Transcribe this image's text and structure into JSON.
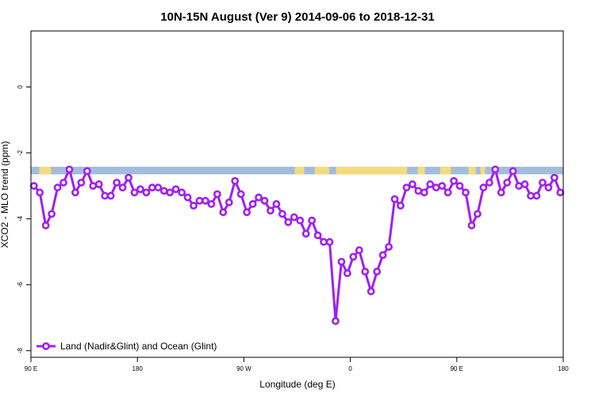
{
  "chart_data": {
    "type": "line",
    "title": "10N-15N August (Ver 9)   2014-09-06 to 2018-12-31",
    "xlabel": "Longitude (deg E)",
    "ylabel": "XCO2 - MLO trend (ppm)",
    "xlim": [
      90,
      540
    ],
    "ylim": [
      -8.2,
      1.7
    ],
    "x_ticks": [
      {
        "value": 90,
        "label": "90 E"
      },
      {
        "value": 180,
        "label": "180"
      },
      {
        "value": 270,
        "label": "90 W"
      },
      {
        "value": 360,
        "label": "0"
      },
      {
        "value": 450,
        "label": "90 E"
      },
      {
        "value": 540,
        "label": "180"
      }
    ],
    "y_ticks": [
      {
        "value": 0,
        "label": "0"
      },
      {
        "value": -2,
        "label": "-2"
      },
      {
        "value": -4,
        "label": "-4"
      },
      {
        "value": -6,
        "label": "-6"
      },
      {
        "value": -8,
        "label": "-8"
      }
    ],
    "grid": false,
    "legend_position": "bottom-left",
    "series": [
      {
        "name": "Land (Nadir&Glint) and Ocean (Glint)",
        "color": "#a020f0",
        "x": [
          92.5,
          97.5,
          102.5,
          107.5,
          112.5,
          117.5,
          122.5,
          127.5,
          132.5,
          137.5,
          142.5,
          147.5,
          152.5,
          157.5,
          162.5,
          167.5,
          172.5,
          177.5,
          182.5,
          187.5,
          192.5,
          197.5,
          202.5,
          207.5,
          212.5,
          217.5,
          222.5,
          227.5,
          232.5,
          237.5,
          242.5,
          247.5,
          252.5,
          257.5,
          262.5,
          267.5,
          272.5,
          277.5,
          282.5,
          287.5,
          292.5,
          297.5,
          302.5,
          307.5,
          312.5,
          317.5,
          322.5,
          327.5,
          332.5,
          337.5,
          342.5,
          347.5,
          352.5,
          357.5,
          362.5,
          367.5,
          372.5,
          377.5,
          382.5,
          387.5,
          392.5,
          397.5,
          402.5,
          407.5,
          412.5,
          417.5,
          422.5,
          427.5,
          432.5,
          437.5,
          442.5,
          447.5,
          452.5,
          457.5,
          462.5,
          467.5,
          472.5,
          477.5,
          482.5,
          487.5,
          492.5,
          497.5,
          502.5,
          507.5,
          512.5,
          517.5,
          522.5,
          527.5,
          532.5,
          537.5
        ],
        "values": [
          -3.0,
          -3.2,
          -4.2,
          -3.85,
          -3.05,
          -2.9,
          -2.5,
          -3.2,
          -2.9,
          -2.55,
          -3.0,
          -2.95,
          -3.3,
          -3.3,
          -2.9,
          -3.05,
          -2.75,
          -3.2,
          -3.1,
          -3.2,
          -3.05,
          -3.05,
          -3.15,
          -3.2,
          -3.1,
          -3.2,
          -3.35,
          -3.6,
          -3.45,
          -3.45,
          -3.55,
          -3.25,
          -3.8,
          -3.5,
          -2.85,
          -3.25,
          -3.8,
          -3.55,
          -3.35,
          -3.45,
          -3.75,
          -3.55,
          -3.85,
          -4.1,
          -3.95,
          -4.05,
          -4.45,
          -4.05,
          -4.5,
          -4.7,
          -4.7,
          -7.1,
          -5.3,
          -5.65,
          -5.15,
          -4.95,
          -5.6,
          -6.2,
          -5.6,
          -5.1,
          -4.85,
          -3.4,
          -3.6,
          -3.05,
          -2.95,
          -3.15,
          -3.2,
          -2.95,
          -3.05,
          -3.0,
          -3.2,
          -2.85,
          -3.0,
          -3.2,
          -4.2,
          -3.85,
          -3.05,
          -2.9,
          -2.5,
          -3.2,
          -2.9,
          -2.55,
          -3.0,
          -2.95,
          -3.3,
          -3.3,
          -2.9,
          -3.05,
          -2.75,
          -3.2
        ]
      }
    ],
    "land_ocean_strip": {
      "y_range": [
        -2.65,
        -2.42
      ],
      "ocean_color": "#a3bcde",
      "land_color": "#f5db7e",
      "land_segments": [
        [
          97,
          107
        ],
        [
          313,
          321
        ],
        [
          330,
          342
        ],
        [
          348,
          408
        ],
        [
          417,
          423
        ],
        [
          436,
          445
        ],
        [
          460,
          466
        ],
        [
          470,
          474
        ]
      ]
    }
  }
}
